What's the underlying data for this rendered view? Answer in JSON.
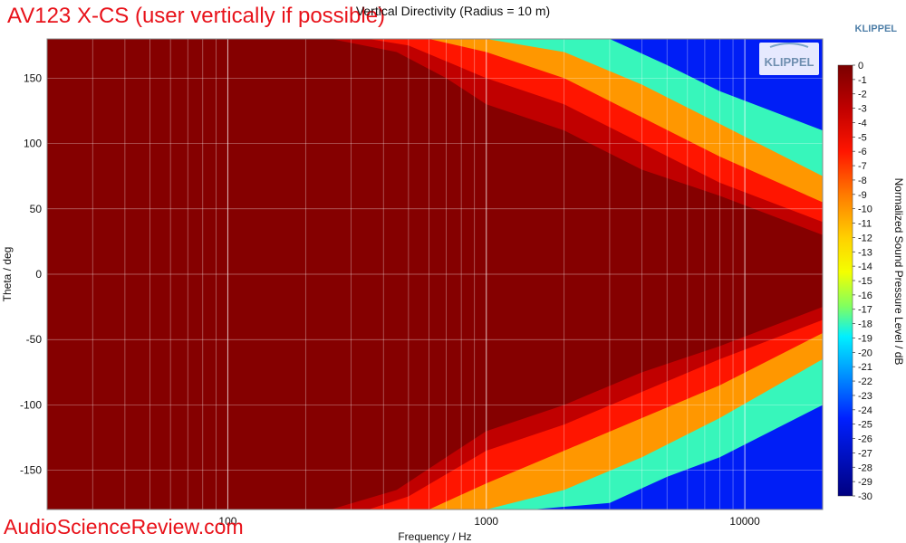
{
  "overlay_title": "AV123 X-CS (user vertically if possible)",
  "watermark": "AudioScienceReview.com",
  "brand_text": "KLIPPEL",
  "logo_text": "KLIPPEL",
  "colors": {
    "accent_red": "#e8121a",
    "brand_blue": "#4f7fa8",
    "colormap": [
      "#8b0000",
      "#c00000",
      "#ff0000",
      "#ff6a00",
      "#ffb300",
      "#ffff00",
      "#a0ff50",
      "#00ffff",
      "#0096ff",
      "#0000ff",
      "#000080"
    ]
  },
  "chart_data": {
    "type": "heatmap",
    "title": "Vertical Directivity (Radius = 10 m)",
    "xlabel": "Frequency / Hz",
    "ylabel": "Theta / deg",
    "colorbar_label": "Normalized Sound Pressure Level / dB",
    "x_scale": "log",
    "xlim": [
      20,
      20000
    ],
    "ylim": [
      -180,
      180
    ],
    "x_ticks": [
      100,
      1000,
      10000
    ],
    "x_tick_labels": [
      "100",
      "1000",
      "10000"
    ],
    "y_ticks": [
      150,
      100,
      50,
      0,
      -50,
      -100,
      -150
    ],
    "y_tick_labels": [
      "150",
      "100",
      "50",
      "0",
      "-50",
      "-100",
      "-150"
    ],
    "colorbar_range": [
      -30,
      0
    ],
    "colorbar_ticks": [
      "0",
      "-1",
      "-2",
      "-3",
      "-4",
      "-5",
      "-6",
      "-7",
      "-8",
      "-9",
      "-10",
      "-11",
      "-12",
      "-13",
      "-14",
      "-15",
      "-16",
      "-17",
      "-18",
      "-19",
      "-20",
      "-21",
      "-22",
      "-23",
      "-24",
      "-25",
      "-26",
      "-27",
      "-28",
      "-29",
      "-30"
    ],
    "grid": true,
    "contours": [
      {
        "level": -3,
        "freq": [
          20,
          250,
          450,
          700,
          1000,
          2000,
          4000,
          8000,
          20000
        ],
        "upper_deg": [
          180,
          180,
          170,
          150,
          130,
          110,
          80,
          60,
          30
        ],
        "lower_deg": [
          -180,
          -180,
          -165,
          -140,
          -120,
          -100,
          -75,
          -55,
          -25
        ]
      },
      {
        "level": -6,
        "freq": [
          20,
          350,
          500,
          1000,
          2000,
          4000,
          8000,
          20000
        ],
        "upper_deg": [
          180,
          180,
          175,
          150,
          130,
          100,
          70,
          40
        ],
        "lower_deg": [
          -180,
          -180,
          -170,
          -135,
          -115,
          -90,
          -65,
          -35
        ]
      },
      {
        "level": -10,
        "freq": [
          20,
          450,
          600,
          1000,
          2000,
          4000,
          8000,
          20000
        ],
        "upper_deg": [
          180,
          180,
          180,
          170,
          150,
          120,
          90,
          55
        ],
        "lower_deg": [
          -180,
          -180,
          -180,
          -160,
          -135,
          -110,
          -85,
          -45
        ]
      },
      {
        "level": -18,
        "freq": [
          20,
          800,
          1000,
          2000,
          4000,
          8000,
          20000
        ],
        "upper_deg": [
          180,
          180,
          180,
          170,
          145,
          115,
          75
        ],
        "lower_deg": [
          -180,
          -180,
          -180,
          -165,
          -140,
          -110,
          -65
        ]
      },
      {
        "level": -25,
        "freq": [
          20,
          1500,
          3000,
          5000,
          8000,
          20000
        ],
        "upper_deg": [
          180,
          180,
          180,
          160,
          140,
          110
        ],
        "lower_deg": [
          -180,
          -180,
          -175,
          -155,
          -140,
          -100
        ]
      }
    ]
  }
}
